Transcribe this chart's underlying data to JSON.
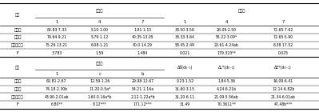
{
  "section1_rows": [
    [
      "抛光组",
      "82.83·7.33",
      "5.10·1.00",
      "1.91·1.15",
      "38.50·3.56",
      "26.09·2.50",
      "72.65·7.62"
    ],
    [
      "漂白组",
      "79.64·9.21",
      "5.79·1.12",
      "40.35·13.05",
      "38.33·3.64",
      "55.22·3.09*",
      "72.65·5.90"
    ],
    [
      "抛光漂白组",
      "75.29·13.21",
      "6.08·1.21",
      "40.0·14.29",
      "58.45·2.49",
      "20.61·4.24ab",
      "6.38·17.52"
    ],
    [
      "F",
      "3.783",
      "1.59",
      "1.484",
      "0.021",
      "179.323**",
      "0.025"
    ]
  ],
  "section2_rows": [
    [
      "抛光组",
      "62.81·2.67",
      "12.59·1.26",
      "29.98·12.67",
      "0.23·1.52",
      "1.84·5.36",
      "16.09·6.41"
    ],
    [
      "漂白组",
      "74.18·2.30b",
      "11.20·0.5a*",
      "54.21·1.16a",
      "31.60·3.15",
      "4.24·6.21b",
      "12.14·6.82b"
    ],
    [
      "抛光漂白组",
      "43.90·2.01ab",
      "1.60·0.16a*b",
      "2.12·1.22a*b",
      "31.20·6.11",
      "21.09·5.56ab",
      "21.34·6.01ab"
    ],
    [
      "F",
      "6.80**",
      "8.12***",
      "171.12***",
      "31.49",
      "70.3611**",
      "47.48b***"
    ]
  ],
  "s1_col_header1": "基线时",
  "s1_col_header2": "处理后",
  "s2_col_header1": "基线时",
  "s1_sub_headers": [
    "1",
    "4",
    "7",
    "1",
    "4",
    "7"
  ],
  "s2_sub_headers": [
    "1",
    "c",
    "b"
  ],
  "s2_extra_headers": [
    "ΔS⃗(d₀₋₁)",
    "ΔL*(d₀₋₁)",
    "ΔE*(d₀₋₁)"
  ],
  "group_label": "组别",
  "bg_color": "#ffffff",
  "line_color": "#000000",
  "font_size": 3.8
}
